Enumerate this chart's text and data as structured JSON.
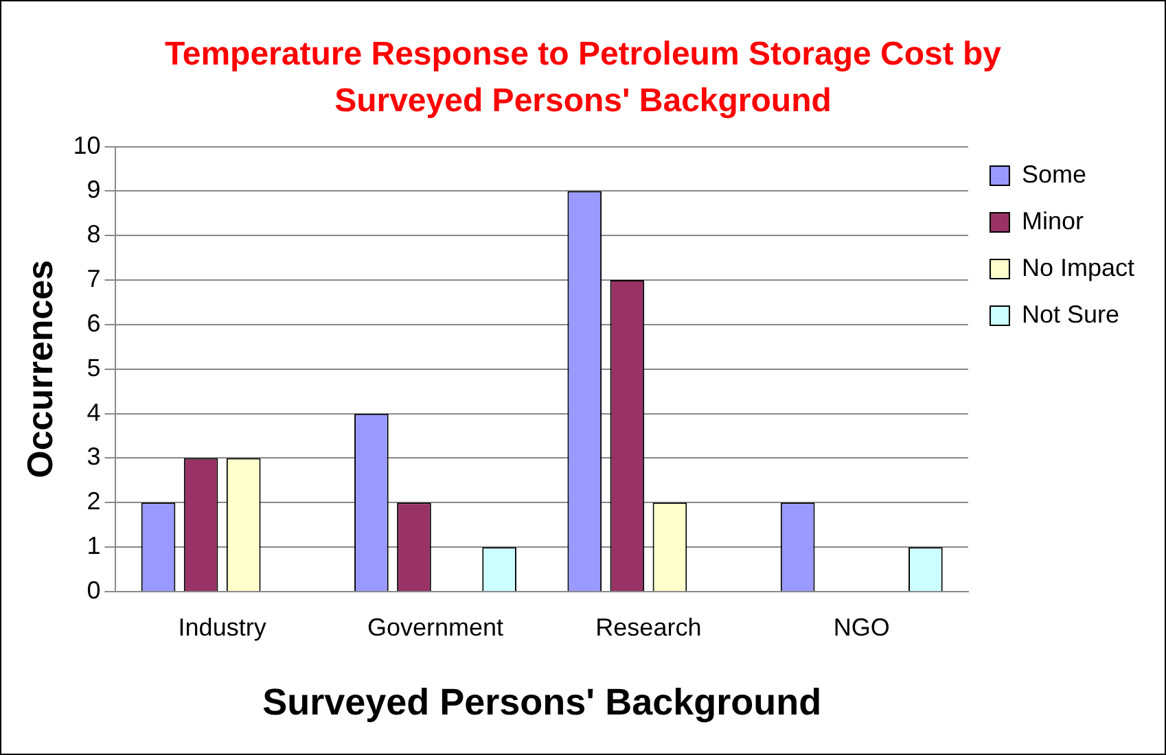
{
  "chart_data": {
    "type": "bar",
    "title": "Temperature Response to Petroleum Storage Cost by Surveyed Persons' Background",
    "xlabel": "Surveyed Persons' Background",
    "ylabel": "Occurrences",
    "categories": [
      "Industry",
      "Government",
      "Research",
      "NGO"
    ],
    "series": [
      {
        "name": "Some",
        "color": "#9999ff",
        "values": [
          2,
          4,
          9,
          2
        ]
      },
      {
        "name": "Minor",
        "color": "#993366",
        "values": [
          3,
          2,
          7,
          0
        ]
      },
      {
        "name": "No Impact",
        "color": "#ffffcc",
        "values": [
          3,
          0,
          2,
          0
        ]
      },
      {
        "name": "Not Sure",
        "color": "#ccffff",
        "values": [
          0,
          1,
          0,
          1
        ]
      }
    ],
    "ylim": [
      0,
      10
    ],
    "yticks": [
      0,
      1,
      2,
      3,
      4,
      5,
      6,
      7,
      8,
      9,
      10
    ],
    "grid": "y",
    "legend": "right"
  }
}
